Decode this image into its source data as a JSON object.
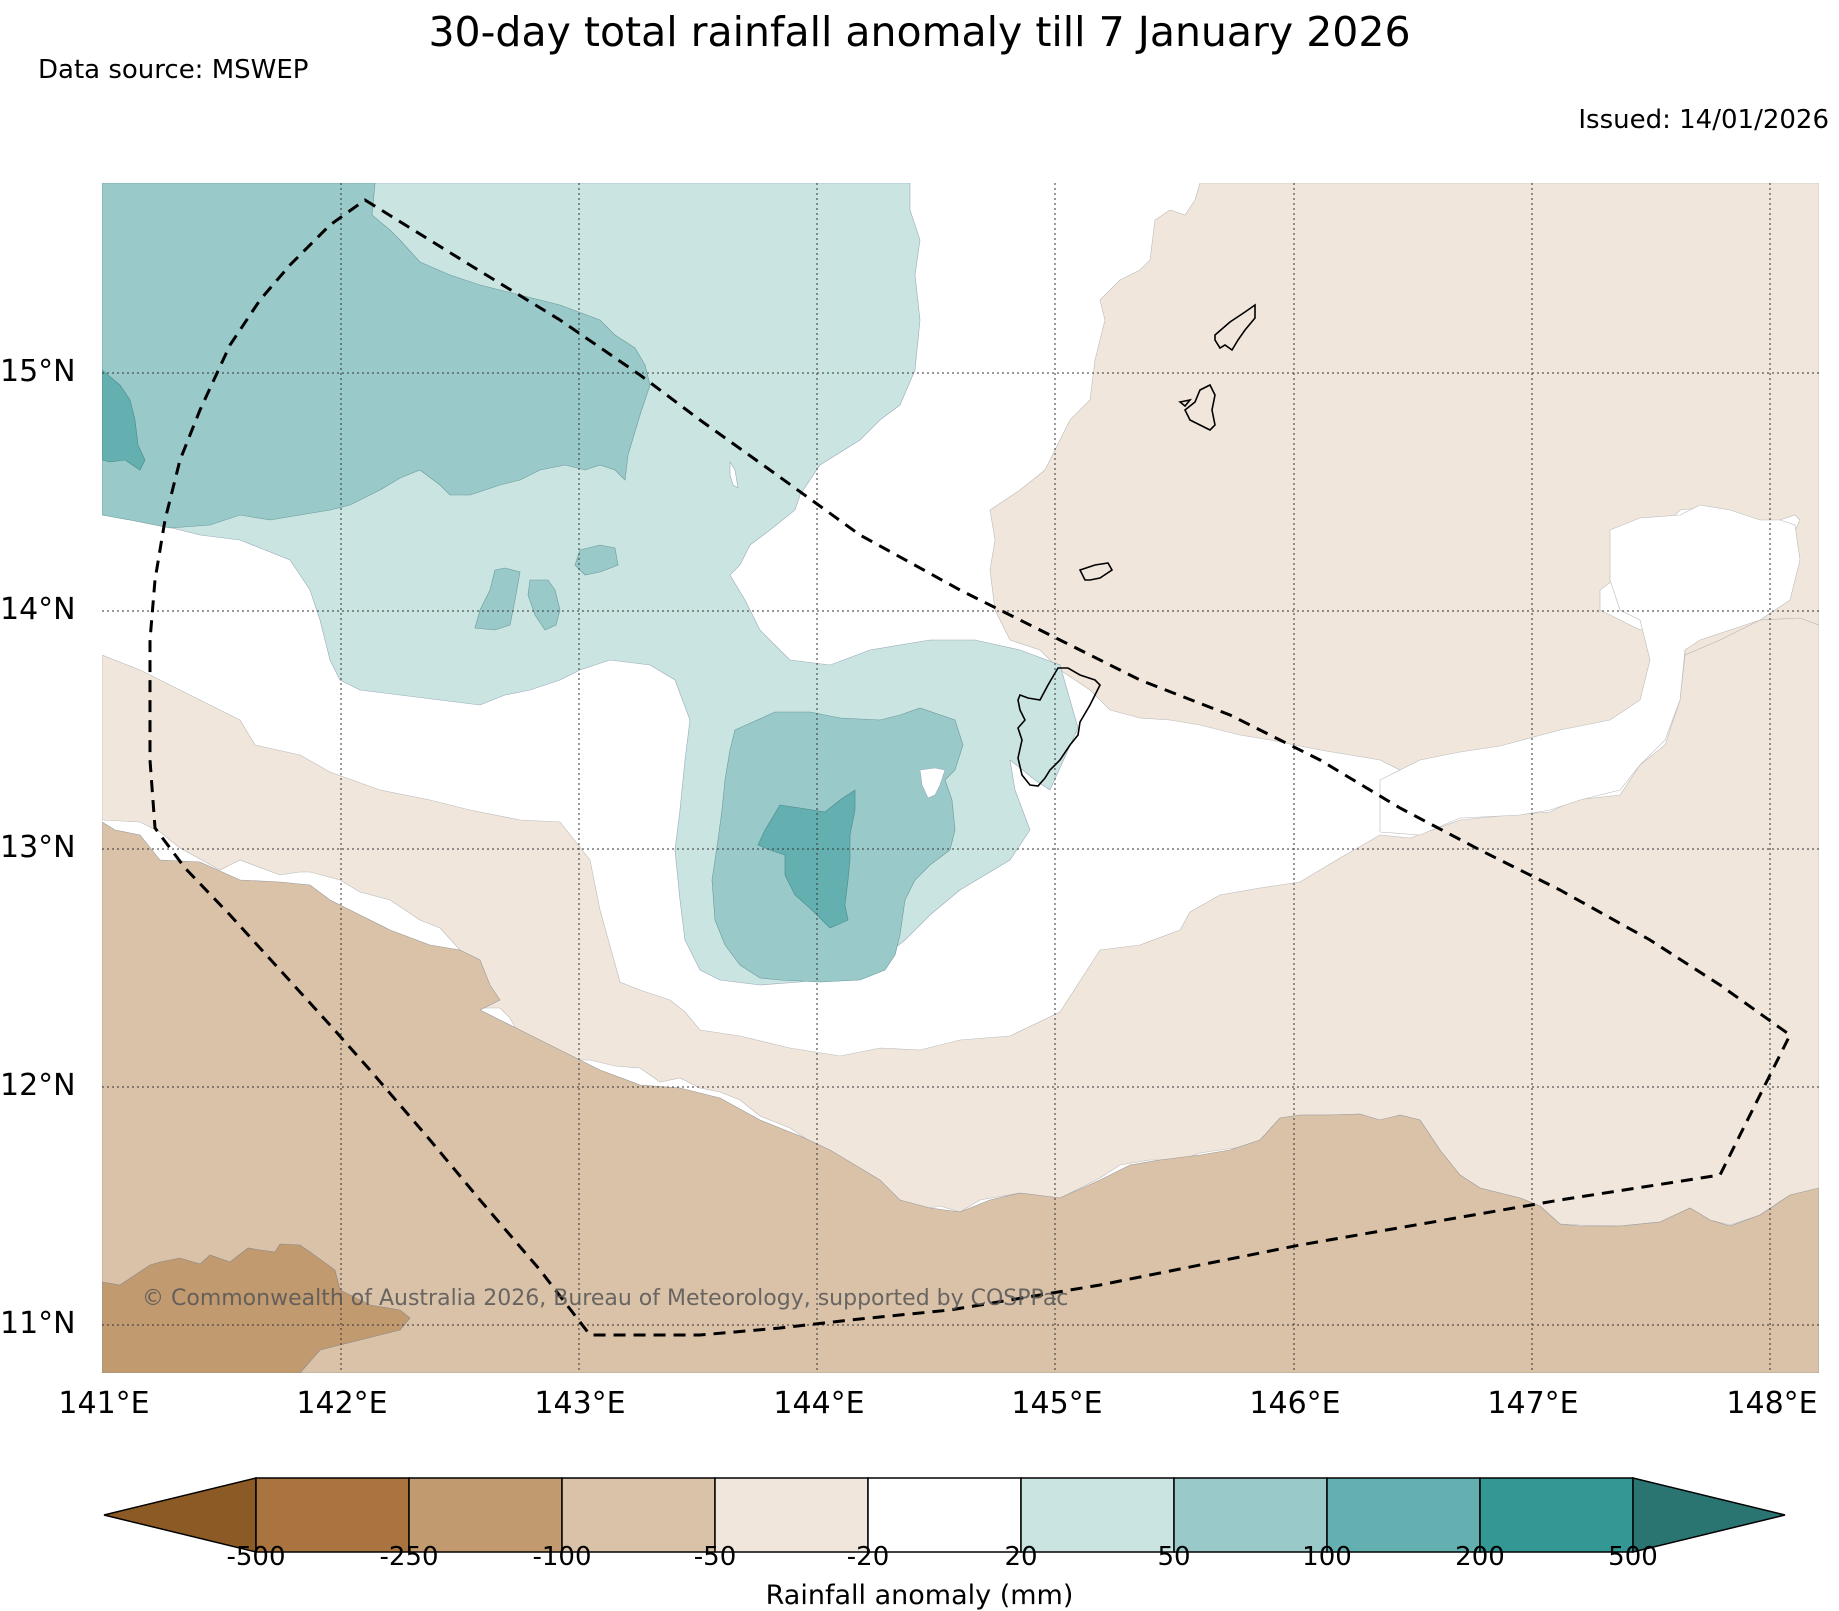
{
  "title": "30-day total rainfall anomaly till 7 January 2026",
  "source": "Data source: MSWEP",
  "issued": "Issued: 14/01/2026",
  "copyright": "© Commonwealth of Australia 2026, Bureau of Meteorology, supported by COSPPac",
  "map": {
    "lon_range": [
      141.0,
      148.2
    ],
    "lat_range": [
      10.8,
      15.8
    ],
    "lat_ticks": [
      "15°N",
      "14°N",
      "13°N",
      "12°N",
      "11°N"
    ],
    "lon_ticks": [
      "141°E",
      "142°E",
      "143°E",
      "144°E",
      "145°E",
      "146°E",
      "147°E",
      "148°E"
    ],
    "gridlines": "dotted",
    "boundary": "dashed EEZ outline",
    "islands": [
      "Guam",
      "Rota",
      "Tinian",
      "Saipan"
    ]
  },
  "colorbar": {
    "title": "Rainfall anomaly (mm)",
    "tick_labels": [
      "-500",
      "-250",
      "-100",
      "-50",
      "-20",
      "20",
      "50",
      "100",
      "200",
      "500"
    ],
    "colors": {
      "lt_-500": "#8c5a24",
      "-500_-250": "#a9743f",
      "-250_-100": "#c29a70",
      "-100_-50": "#dac2a9",
      "-50_-20": "#f0e6dc",
      "-20_20": "#ffffff",
      "20_50": "#cae4e2",
      "50_100": "#99c9c9",
      "100_200": "#64afaf",
      "200_500": "#339894",
      "gt_500": "#2a7472"
    }
  }
}
